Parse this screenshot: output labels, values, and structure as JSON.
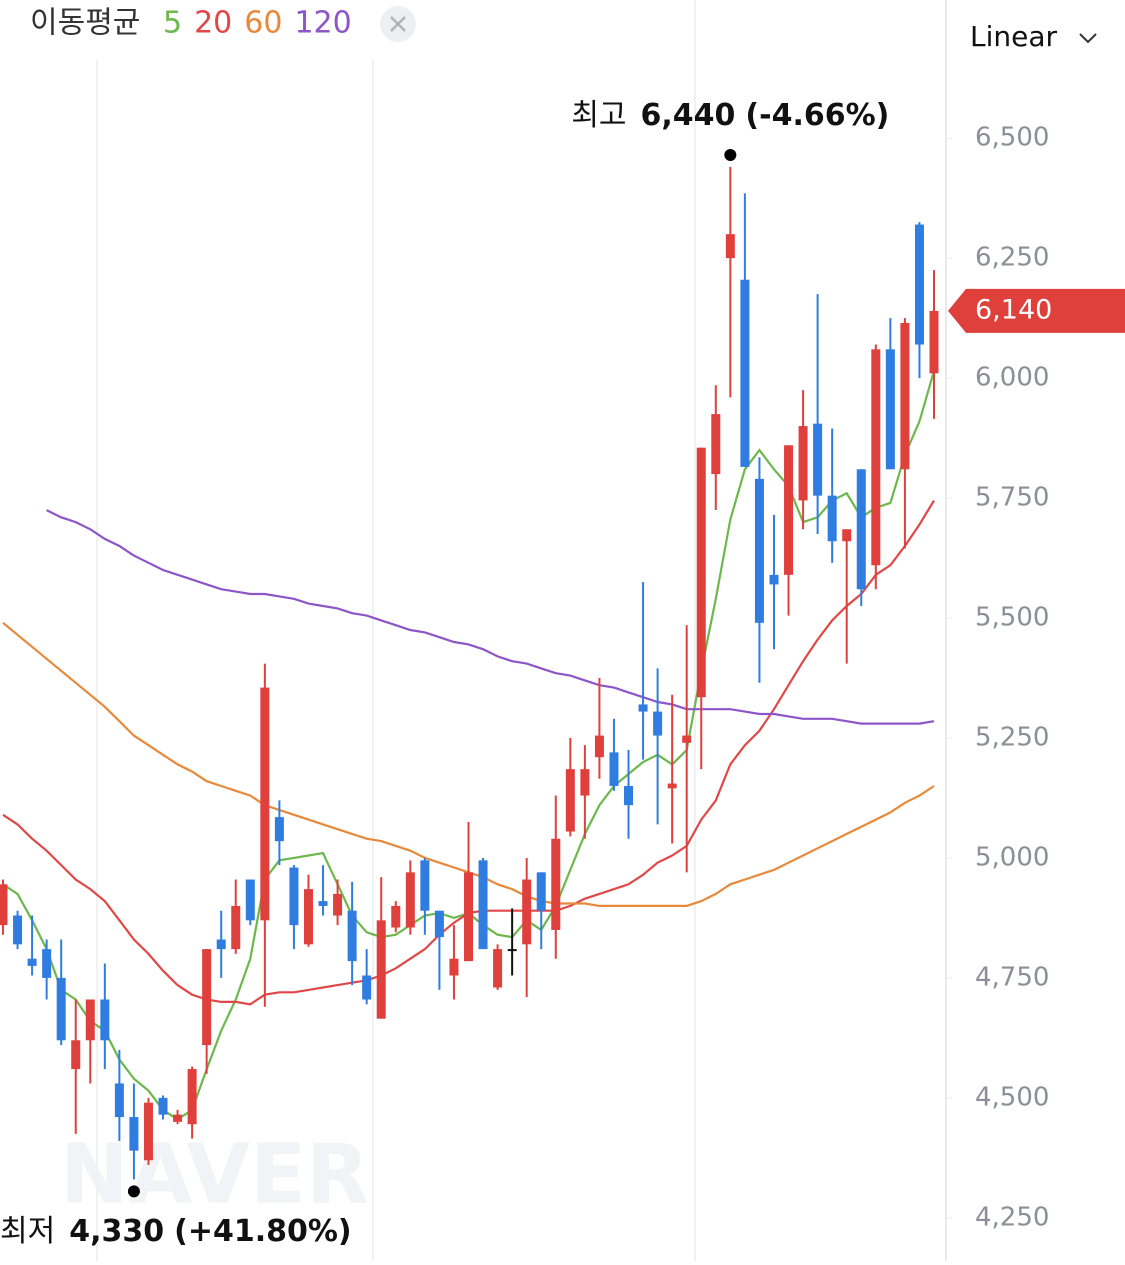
{
  "chart_data": {
    "type": "candlestick",
    "legend_title": "이동평균",
    "scale_mode": "Linear",
    "watermark": "NAVER",
    "up_color": "#e0403c",
    "down_color": "#2f7de1",
    "flat_color": "#111111",
    "ylim": [
      4160,
      6788
    ],
    "yticks": [
      {
        "value": 4250,
        "label": "4,250"
      },
      {
        "value": 4500,
        "label": "4,500"
      },
      {
        "value": 4750,
        "label": "4,750"
      },
      {
        "value": 5000,
        "label": "5,000"
      },
      {
        "value": 5250,
        "label": "5,250"
      },
      {
        "value": 5500,
        "label": "5,500"
      },
      {
        "value": 5750,
        "label": "5,750"
      },
      {
        "value": 6000,
        "label": "6,000"
      },
      {
        "value": 6250,
        "label": "6,250"
      },
      {
        "value": 6500,
        "label": "6,500"
      }
    ],
    "open": [
      4860,
      4880,
      4790,
      4810,
      4750,
      4560,
      4620,
      4705,
      4530,
      4460,
      4370,
      4500,
      4450,
      4445,
      4610,
      4830,
      4810,
      4955,
      4870,
      5085,
      4980,
      4820,
      4910,
      4880,
      4890,
      4755,
      4665,
      4855,
      4855,
      4995,
      4890,
      4755,
      4785,
      4995,
      4730,
      4810,
      4820,
      4970,
      4850,
      5055,
      5130,
      5210,
      5220,
      5150,
      5320,
      5305,
      5145,
      5240,
      5335,
      5800,
      6250,
      6205,
      5790,
      5590,
      5590,
      5745,
      5905,
      5755,
      5660,
      5810,
      5610,
      6060,
      5810,
      6320,
      6010
    ],
    "high": [
      4955,
      4890,
      4880,
      4830,
      4830,
      4705,
      4705,
      4780,
      4600,
      4530,
      4500,
      4505,
      4475,
      4565,
      4810,
      4890,
      4955,
      4955,
      5405,
      5120,
      4985,
      4965,
      4985,
      4955,
      4950,
      4810,
      4960,
      4910,
      4995,
      5000,
      4890,
      4860,
      5075,
      5000,
      4820,
      4895,
      5000,
      4970,
      5130,
      5250,
      5235,
      5375,
      5290,
      5225,
      5575,
      5395,
      5340,
      5485,
      5855,
      5985,
      6440,
      6385,
      5835,
      5715,
      5860,
      5975,
      6175,
      5895,
      5685,
      5810,
      6070,
      6125,
      6125,
      6325,
      6225
    ],
    "low": [
      4840,
      4810,
      4755,
      4705,
      4610,
      4425,
      4530,
      4560,
      4410,
      4330,
      4360,
      4455,
      4445,
      4415,
      4550,
      4750,
      4800,
      4860,
      4690,
      4985,
      4810,
      4815,
      4880,
      4860,
      4735,
      4695,
      4665,
      4845,
      4840,
      4840,
      4725,
      4705,
      4785,
      4810,
      4725,
      4755,
      4710,
      4810,
      4790,
      5045,
      5040,
      5165,
      5140,
      5040,
      5205,
      5070,
      5030,
      4970,
      5185,
      5725,
      5960,
      5815,
      5365,
      5435,
      5505,
      5685,
      5675,
      5615,
      5405,
      5525,
      5560,
      5810,
      5645,
      6000,
      5915
    ],
    "close": [
      4945,
      4820,
      4775,
      4750,
      4620,
      4620,
      4705,
      4620,
      4460,
      4390,
      4490,
      4465,
      4465,
      4560,
      4810,
      4810,
      4900,
      4870,
      5355,
      5035,
      4860,
      4935,
      4900,
      4925,
      4785,
      4705,
      4870,
      4900,
      4970,
      4890,
      4835,
      4790,
      4970,
      4810,
      4810,
      4810,
      4955,
      4890,
      5040,
      5185,
      5185,
      5255,
      5150,
      5110,
      5305,
      5255,
      5155,
      5255,
      5855,
      5925,
      6300,
      5815,
      5490,
      5570,
      5860,
      5900,
      5755,
      5660,
      5685,
      5560,
      6060,
      5810,
      6115,
      6070,
      6140
    ],
    "series": [
      {
        "name": "5",
        "color": "#6cb84b",
        "values": [
          4945,
          4925,
          4870,
          4810,
          4725,
          4705,
          4660,
          4640,
          4580,
          4540,
          4515,
          4475,
          4455,
          4475,
          4560,
          4640,
          4705,
          4790,
          4955,
          4995,
          5000,
          5005,
          5010,
          4945,
          4880,
          4845,
          4835,
          4840,
          4860,
          4880,
          4885,
          4875,
          4885,
          4860,
          4840,
          4835,
          4870,
          4850,
          4900,
          4975,
          5050,
          5110,
          5150,
          5175,
          5200,
          5215,
          5195,
          5225,
          5390,
          5540,
          5705,
          5810,
          5850,
          5810,
          5775,
          5700,
          5710,
          5745,
          5760,
          5710,
          5730,
          5740,
          5840,
          5910,
          6015
        ]
      },
      {
        "name": "20",
        "color": "#e04848",
        "values": [
          5090,
          5070,
          5040,
          5015,
          4985,
          4955,
          4935,
          4910,
          4870,
          4830,
          4800,
          4765,
          4735,
          4715,
          4705,
          4700,
          4700,
          4695,
          4715,
          4720,
          4720,
          4725,
          4730,
          4735,
          4740,
          4745,
          4755,
          4770,
          4790,
          4810,
          4840,
          4865,
          4885,
          4890,
          4890,
          4890,
          4890,
          4890,
          4890,
          4900,
          4915,
          4925,
          4935,
          4945,
          4965,
          4990,
          5005,
          5025,
          5080,
          5120,
          5195,
          5235,
          5265,
          5310,
          5360,
          5410,
          5455,
          5495,
          5525,
          5550,
          5590,
          5610,
          5650,
          5695,
          5745
        ]
      },
      {
        "name": "60",
        "color": "#e8893a",
        "values": [
          5490,
          5465,
          5440,
          5415,
          5390,
          5365,
          5340,
          5315,
          5285,
          5255,
          5235,
          5215,
          5195,
          5180,
          5160,
          5150,
          5140,
          5130,
          5110,
          5100,
          5090,
          5080,
          5070,
          5060,
          5050,
          5040,
          5035,
          5025,
          5015,
          5000,
          4990,
          4980,
          4970,
          4960,
          4945,
          4935,
          4920,
          4910,
          4905,
          4905,
          4905,
          4900,
          4900,
          4900,
          4900,
          4900,
          4900,
          4900,
          4910,
          4925,
          4945,
          4955,
          4965,
          4975,
          4990,
          5005,
          5020,
          5035,
          5050,
          5065,
          5080,
          5095,
          5115,
          5130,
          5150
        ]
      },
      {
        "name": "120",
        "color": "#8e55c8",
        "values": [
          null,
          null,
          null,
          5725,
          5710,
          5700,
          5685,
          5665,
          5650,
          5630,
          5615,
          5600,
          5590,
          5580,
          5570,
          5560,
          5555,
          5550,
          5550,
          5545,
          5540,
          5530,
          5525,
          5520,
          5510,
          5505,
          5495,
          5485,
          5475,
          5470,
          5460,
          5450,
          5445,
          5435,
          5420,
          5410,
          5405,
          5395,
          5385,
          5380,
          5370,
          5360,
          5355,
          5345,
          5335,
          5325,
          5320,
          5310,
          5310,
          5310,
          5310,
          5305,
          5300,
          5300,
          5295,
          5290,
          5290,
          5290,
          5285,
          5280,
          5280,
          5280,
          5280,
          5280,
          5285
        ]
      }
    ],
    "annotations": [
      {
        "label": "최고",
        "value": 6440,
        "value_label": "6,440",
        "change": "(-4.66%)"
      },
      {
        "label": "최저",
        "value": 4330,
        "value_label": "4,330",
        "change": "(+41.80%)"
      }
    ],
    "last_price": {
      "value": 6140,
      "label": "6,140"
    }
  }
}
